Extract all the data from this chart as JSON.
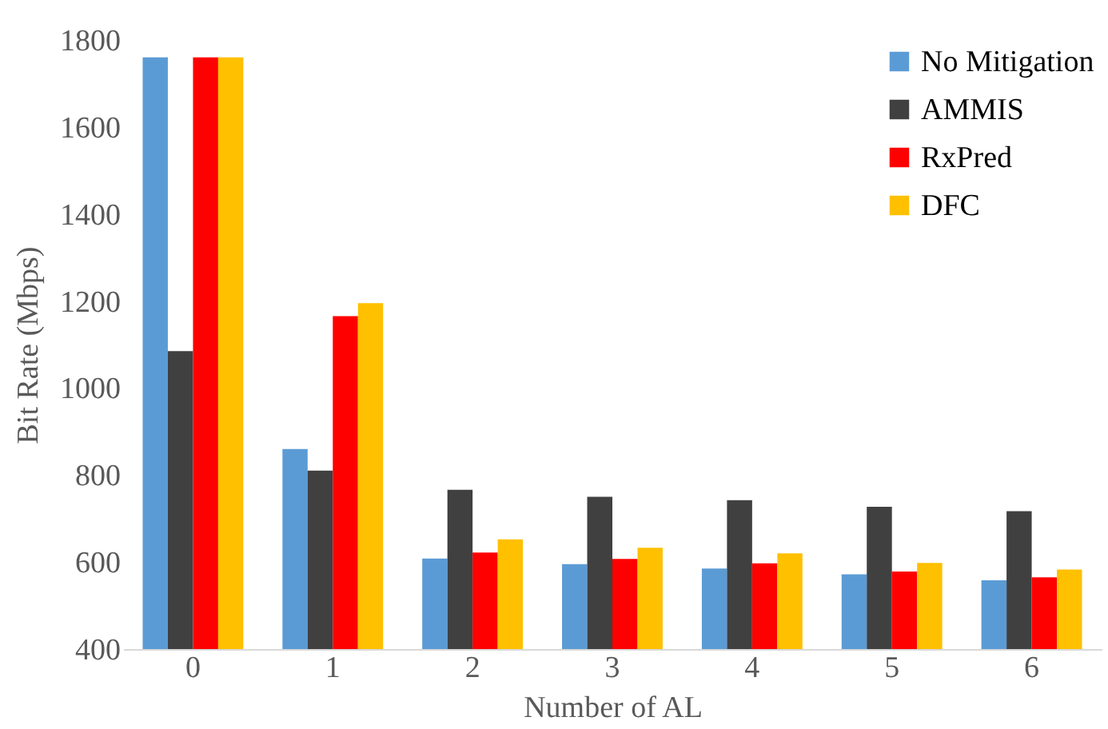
{
  "chart_data": {
    "type": "bar",
    "xlabel": "Number of AL",
    "ylabel": "Bit Rate (Mbps)",
    "categories": [
      "0",
      "1",
      "2",
      "3",
      "4",
      "5",
      "6"
    ],
    "series": [
      {
        "name": "No Mitigation",
        "color": "#5b9bd5",
        "values": [
          1760,
          860,
          608,
          595,
          585,
          572,
          558
        ]
      },
      {
        "name": "AMMIS",
        "color": "#404040",
        "values": [
          1085,
          810,
          766,
          750,
          742,
          727,
          717
        ]
      },
      {
        "name": "RxPred",
        "color": "#ff0000",
        "values": [
          1760,
          1165,
          622,
          607,
          597,
          578,
          565
        ]
      },
      {
        "name": "DFC",
        "color": "#ffc000",
        "values": [
          1760,
          1195,
          652,
          633,
          620,
          598,
          583
        ]
      }
    ],
    "ylim": [
      400,
      1800
    ],
    "yticks": [
      400,
      600,
      800,
      1000,
      1200,
      1400,
      1600,
      1800
    ],
    "grid": false,
    "legend": "top right"
  }
}
